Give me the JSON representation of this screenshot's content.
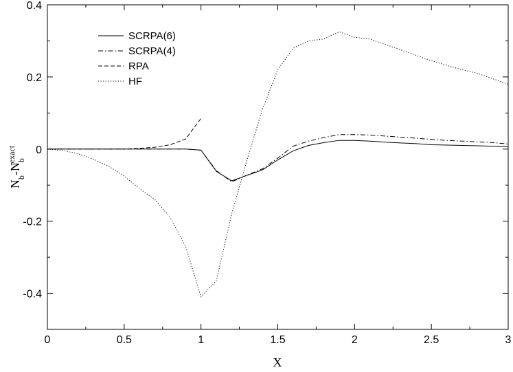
{
  "chart_data": {
    "type": "line",
    "xlabel": "X",
    "ylabel": {
      "main": "N",
      "main_sub": "b",
      "dash": "-N",
      "exact_sub": "b",
      "exact_sup": "exact"
    },
    "xlim": [
      0,
      3
    ],
    "ylim": [
      -0.5,
      0.4
    ],
    "xticks": [
      0,
      0.5,
      1,
      1.5,
      2,
      2.5,
      3
    ],
    "xtick_labels": [
      "0",
      "0.5",
      "1",
      "1.5",
      "2",
      "2.5",
      "3"
    ],
    "yticks": [
      -0.4,
      -0.2,
      0,
      0.2,
      0.4
    ],
    "ytick_labels": [
      "-0.4",
      "-0.2",
      "0",
      "0.2",
      "0.4"
    ],
    "grid": false,
    "legend_position": "top-left",
    "series": [
      {
        "name": "SCRPA(6)",
        "line_style": "solid",
        "x": [
          0,
          0.5,
          0.8,
          0.9,
          1.0,
          1.1,
          1.2,
          1.3,
          1.4,
          1.5,
          1.6,
          1.7,
          1.8,
          1.9,
          2.0,
          2.1,
          2.2,
          2.3,
          2.4,
          2.5,
          2.6,
          2.7,
          2.8,
          2.9,
          3.0
        ],
        "y": [
          0,
          0,
          0,
          0,
          -0.003,
          -0.062,
          -0.088,
          -0.073,
          -0.058,
          -0.03,
          -0.005,
          0.01,
          0.018,
          0.024,
          0.024,
          0.022,
          0.019,
          0.017,
          0.015,
          0.012,
          0.011,
          0.01,
          0.009,
          0.008,
          0.006
        ]
      },
      {
        "name": "SCRPA(4)",
        "line_style": "dashdot",
        "x": [
          0,
          0.5,
          0.8,
          0.9,
          1.0,
          1.1,
          1.2,
          1.3,
          1.4,
          1.5,
          1.6,
          1.7,
          1.8,
          1.9,
          2.0,
          2.1,
          2.2,
          2.3,
          2.4,
          2.5,
          2.6,
          2.7,
          2.8,
          2.9,
          3.0
        ],
        "y": [
          0,
          0,
          0,
          0,
          -0.003,
          -0.06,
          -0.091,
          -0.072,
          -0.055,
          -0.025,
          0.008,
          0.022,
          0.032,
          0.04,
          0.04,
          0.039,
          0.036,
          0.033,
          0.03,
          0.027,
          0.024,
          0.022,
          0.02,
          0.018,
          0.014
        ]
      },
      {
        "name": "RPA",
        "line_style": "dashed",
        "x": [
          0,
          0.3,
          0.5,
          0.6,
          0.7,
          0.8,
          0.9,
          1.0
        ],
        "y": [
          0,
          0,
          0.0,
          0.002,
          0.005,
          0.012,
          0.028,
          0.085
        ]
      },
      {
        "name": "HF",
        "line_style": "dotted",
        "x": [
          0,
          0.1,
          0.2,
          0.3,
          0.4,
          0.5,
          0.6,
          0.7,
          0.8,
          0.9,
          1.0,
          1.1,
          1.2,
          1.3,
          1.4,
          1.5,
          1.6,
          1.7,
          1.8,
          1.9,
          2.0,
          2.1,
          2.2,
          2.3,
          2.4,
          2.5,
          2.6,
          2.7,
          2.8,
          2.9,
          3.0
        ],
        "y": [
          0,
          -0.004,
          -0.013,
          -0.028,
          -0.048,
          -0.075,
          -0.11,
          -0.14,
          -0.19,
          -0.27,
          -0.41,
          -0.365,
          -0.18,
          -0.03,
          0.11,
          0.22,
          0.28,
          0.3,
          0.305,
          0.325,
          0.31,
          0.305,
          0.29,
          0.275,
          0.26,
          0.245,
          0.232,
          0.22,
          0.21,
          0.195,
          0.18
        ]
      }
    ]
  }
}
